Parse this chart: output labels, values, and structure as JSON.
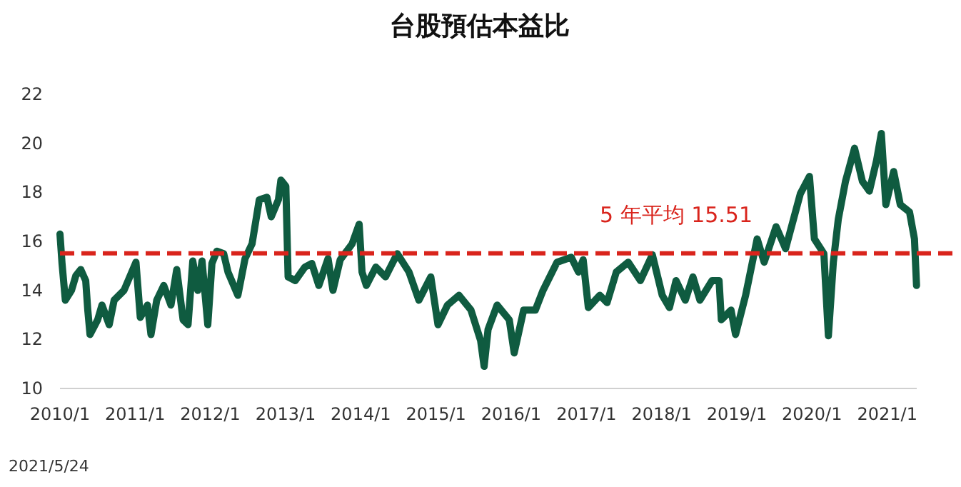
{
  "chart_data": {
    "type": "line",
    "title": "台股預估本益比",
    "x": [
      "2010-01-01",
      "2010-01-11",
      "2010-01-27",
      "2010-02-26",
      "2010-03-19",
      "2010-04-12",
      "2010-05-06",
      "2010-05-16",
      "2010-05-27",
      "2010-07-03",
      "2010-07-24",
      "2010-08-28",
      "2010-09-21",
      "2010-11-08",
      "2011-01-05",
      "2011-01-26",
      "2011-03-02",
      "2011-03-19",
      "2011-04-16",
      "2011-05-20",
      "2011-06-24",
      "2011-07-22",
      "2011-08-22",
      "2011-09-15",
      "2011-10-08",
      "2011-11-01",
      "2011-11-22",
      "2011-12-20",
      "2012-01-09",
      "2012-02-02",
      "2012-03-06",
      "2012-03-27",
      "2012-05-14",
      "2012-06-18",
      "2012-07-22",
      "2012-08-26",
      "2012-10-02",
      "2012-10-23",
      "2012-11-27",
      "2012-12-09",
      "2013-01-02",
      "2013-01-13",
      "2013-02-17",
      "2013-04-04",
      "2013-05-08",
      "2013-06-11",
      "2013-07-26",
      "2013-08-19",
      "2013-09-23",
      "2013-11-20",
      "2013-12-24",
      "2014-01-07",
      "2014-01-28",
      "2014-03-15",
      "2014-05-01",
      "2014-06-27",
      "2014-08-23",
      "2014-10-10",
      "2014-12-07",
      "2015-01-11",
      "2015-02-26",
      "2015-04-23",
      "2015-06-20",
      "2015-08-06",
      "2015-08-23",
      "2015-09-11",
      "2015-10-25",
      "2015-12-23",
      "2016-01-16",
      "2016-03-02",
      "2016-04-28",
      "2016-06-04",
      "2016-08-11",
      "2016-10-19",
      "2016-11-23",
      "2016-12-16",
      "2017-01-10",
      "2017-03-07",
      "2017-04-11",
      "2017-05-26",
      "2017-07-23",
      "2017-09-20",
      "2017-11-17",
      "2018-01-04",
      "2018-02-08",
      "2018-03-12",
      "2018-04-26",
      "2018-06-02",
      "2018-07-06",
      "2018-09-03",
      "2018-10-07",
      "2018-10-18",
      "2018-12-04",
      "2018-12-26",
      "2019-02-13",
      "2019-04-10",
      "2019-05-14",
      "2019-07-11",
      "2019-08-26",
      "2019-11-06",
      "2019-12-20",
      "2020-01-13",
      "2020-02-28",
      "2020-03-21",
      "2020-04-14",
      "2020-05-08",
      "2020-06-12",
      "2020-07-26",
      "2020-09-02",
      "2020-10-06",
      "2020-11-10",
      "2020-12-03",
      "2020-12-25",
      "2021-02-01",
      "2021-03-05",
      "2021-04-19",
      "2021-05-13",
      "2021-05-23"
    ],
    "series": [
      {
        "color": "#0f5b40",
        "values": [
          16.3,
          15.1,
          13.6,
          14.0,
          14.6,
          14.85,
          14.4,
          13.2,
          12.2,
          12.8,
          13.4,
          12.6,
          13.6,
          14.0,
          15.15,
          12.9,
          13.4,
          12.2,
          13.6,
          14.2,
          13.4,
          14.85,
          12.8,
          12.6,
          15.2,
          14.0,
          15.2,
          12.6,
          15.1,
          15.6,
          15.5,
          14.75,
          13.8,
          15.3,
          15.9,
          17.7,
          17.8,
          17.0,
          17.7,
          18.5,
          18.25,
          14.55,
          14.4,
          14.95,
          15.1,
          14.2,
          15.3,
          14.0,
          15.25,
          15.9,
          16.7,
          14.75,
          14.2,
          14.95,
          14.55,
          15.5,
          14.75,
          13.6,
          14.55,
          12.6,
          13.4,
          13.8,
          13.2,
          11.95,
          10.9,
          12.4,
          13.4,
          12.8,
          11.45,
          13.2,
          13.2,
          14.0,
          15.15,
          15.35,
          14.75,
          15.25,
          13.3,
          13.8,
          13.5,
          14.75,
          15.15,
          14.4,
          15.45,
          13.8,
          13.3,
          14.4,
          13.6,
          14.55,
          13.6,
          14.4,
          14.4,
          12.8,
          13.2,
          12.2,
          13.8,
          16.1,
          15.15,
          16.6,
          15.7,
          17.95,
          18.65,
          16.1,
          15.5,
          12.15,
          15.15,
          16.9,
          18.45,
          19.8,
          18.45,
          18.05,
          19.3,
          20.4,
          17.5,
          18.85,
          17.5,
          17.2,
          16.1,
          14.2
        ]
      }
    ],
    "xlim": [
      "2010-01-01",
      "2021-05-24"
    ],
    "xticks": [
      {
        "value": "2010-01",
        "label": "2010/1"
      },
      {
        "value": "2011-01",
        "label": "2011/1"
      },
      {
        "value": "2012-01",
        "label": "2012/1"
      },
      {
        "value": "2013-01",
        "label": "2013/1"
      },
      {
        "value": "2014-01",
        "label": "2014/1"
      },
      {
        "value": "2015-01",
        "label": "2015/1"
      },
      {
        "value": "2016-01",
        "label": "2016/1"
      },
      {
        "value": "2017-01",
        "label": "2017/1"
      },
      {
        "value": "2018-01",
        "label": "2018/1"
      },
      {
        "value": "2019-01",
        "label": "2019/1"
      },
      {
        "value": "2020-01",
        "label": "2020/1"
      },
      {
        "value": "2021-01",
        "label": "2021/1"
      }
    ],
    "ylim": [
      10,
      22
    ],
    "yticks": [
      10,
      12,
      14,
      16,
      18,
      20,
      22
    ],
    "ref_lines": [
      {
        "axis": "y",
        "value": 15.51,
        "label": "5 年平均 15.51",
        "color": "#d9241c",
        "line_style": "dashed"
      }
    ],
    "annotations": [
      "2021/5/24"
    ]
  }
}
